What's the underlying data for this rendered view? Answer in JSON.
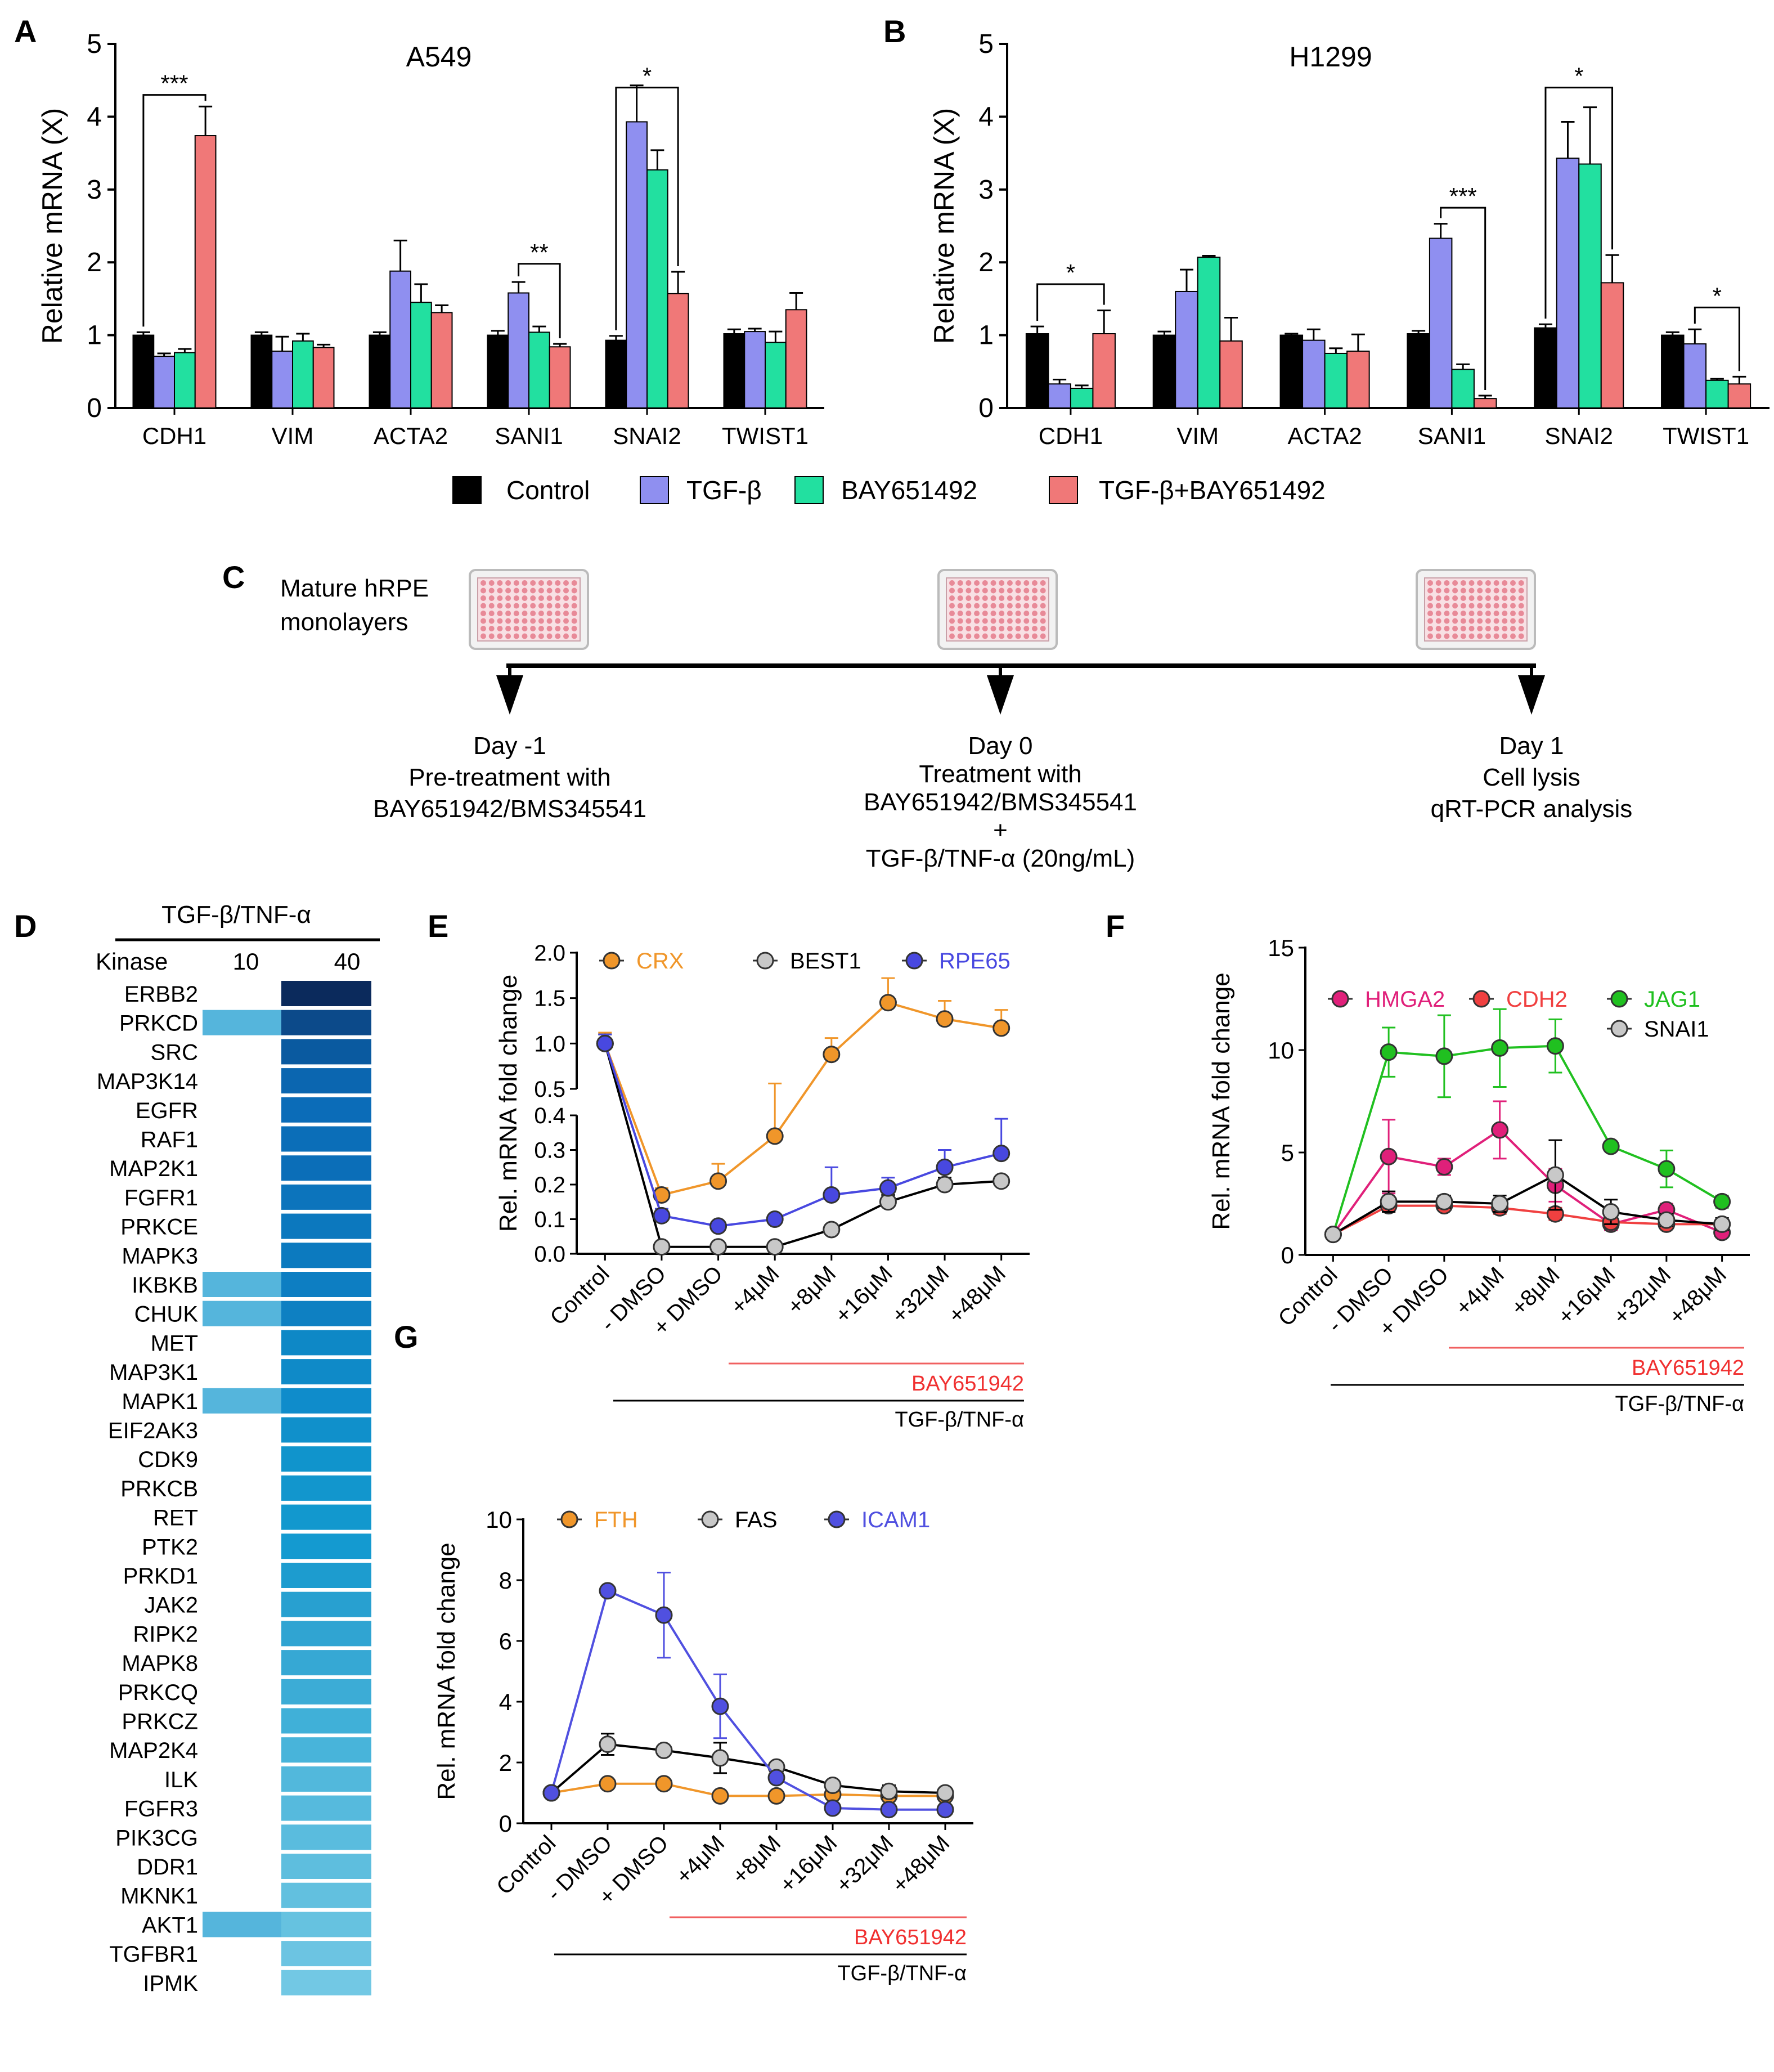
{
  "panel_letters": [
    "A",
    "B",
    "C",
    "D",
    "E",
    "F",
    "G"
  ],
  "colors": {
    "control": "#000000",
    "tgf": "#8f8ff0",
    "bay": "#22e0a0",
    "combo": "#f07878",
    "crx": "#f0962a",
    "best1": "#c8c8c8",
    "rpe65": "#4848e0",
    "hmga2": "#e0207a",
    "cdh2": "#f04040",
    "jag1": "#20c020",
    "snai1": "#c8c8c8",
    "fth": "#f0962a",
    "fas": "#c8c8c8",
    "icam1": "#5050e0",
    "treat_line": "#f06060",
    "treat_text": "#f03030"
  },
  "legend_ab": [
    "Control",
    "TGF-β",
    "BAY651492",
    "TGF-β+BAY651492"
  ],
  "panel_c": {
    "mature_label": [
      "Mature hRPE",
      "monolayers"
    ],
    "day_minus1": [
      "Day -1",
      "Pre-treatment with",
      "BAY651942/BMS345541"
    ],
    "day_0": [
      "Day 0",
      "Treatment with",
      "BAY651942/BMS345541",
      "+",
      "TGF-β/TNF-α (20ng/mL)"
    ],
    "day_1": [
      "Day 1",
      "Cell lysis",
      "qRT-PCR analysis"
    ]
  },
  "panel_d": {
    "header": "TGF-β/TNF-α",
    "kinase_label": "Kinase",
    "col_10": "10",
    "col_40": "40",
    "kinases": [
      "ERBB2",
      "PRKCD",
      "SRC",
      "MAP3K14",
      "EGFR",
      "RAF1",
      "MAP2K1",
      "FGFR1",
      "PRKCE",
      "MAPK3",
      "IKBKB",
      "CHUK",
      "MET",
      "MAP3K1",
      "MAPK1",
      "EIF2AK3",
      "CDK9",
      "PRKCB",
      "RET",
      "PTK2",
      "PRKD1",
      "JAK2",
      "RIPK2",
      "MAPK8",
      "PRKCQ",
      "PRKCZ",
      "MAP2K4",
      "ILK",
      "FGFR3",
      "PIK3CG",
      "DDR1",
      "MKNK1",
      "AKT1",
      "TGFBR1",
      "IPMK"
    ],
    "col10_shaded": [
      false,
      true,
      false,
      false,
      false,
      false,
      false,
      false,
      false,
      false,
      true,
      true,
      false,
      false,
      true,
      false,
      false,
      false,
      false,
      false,
      false,
      false,
      false,
      false,
      false,
      false,
      false,
      false,
      false,
      false,
      false,
      false,
      true,
      false,
      false
    ],
    "col40_colors": [
      "#0b2a5c",
      "#0c4a8a",
      "#0a5aa0",
      "#0b66b0",
      "#0b6cb8",
      "#0b6eb8",
      "#0b6eb8",
      "#0c74bc",
      "#0c78be",
      "#0c7abf",
      "#0d7ec2",
      "#0e80c2",
      "#0e88c6",
      "#0f8ac8",
      "#0f8ccb",
      "#1090cb",
      "#1094cc",
      "#1296cd",
      "#1298ce",
      "#149ad0",
      "#1d9ccf",
      "#28a0d0",
      "#30a4d2",
      "#36a8d4",
      "#3cacd6",
      "#40b0d8",
      "#48b4da",
      "#52b8dc",
      "#56badd",
      "#5abcde",
      "#5ebede",
      "#62c0df",
      "#66c2e0",
      "#6cc4e2",
      "#72c8e4"
    ],
    "col10_color": "#55b5dc"
  },
  "chart_data": [
    {
      "panel": "A",
      "type": "bar",
      "title": "A549",
      "ylabel": "Relative mRNA (X)",
      "ylim": [
        0,
        5
      ],
      "yticks": [
        0,
        1,
        2,
        3,
        4,
        5
      ],
      "categories": [
        "CDH1",
        "VIM",
        "ACTA2",
        "SANI1",
        "SNAI2",
        "TWIST1"
      ],
      "series": [
        {
          "name": "Control",
          "values": [
            1.0,
            1.0,
            1.0,
            1.0,
            0.93,
            1.02
          ],
          "err": [
            0.04,
            0.04,
            0.04,
            0.06,
            0.06,
            0.06
          ]
        },
        {
          "name": "TGF-β",
          "values": [
            0.71,
            0.78,
            1.88,
            1.58,
            3.93,
            1.05
          ],
          "err": [
            0.04,
            0.2,
            0.42,
            0.15,
            0.5,
            0.04
          ]
        },
        {
          "name": "BAY651492",
          "values": [
            0.76,
            0.92,
            1.45,
            1.04,
            3.27,
            0.9
          ],
          "err": [
            0.05,
            0.1,
            0.25,
            0.08,
            0.27,
            0.15
          ]
        },
        {
          "name": "TGF-β+BAY651492",
          "values": [
            3.74,
            0.83,
            1.31,
            0.84,
            1.57,
            1.35
          ],
          "err": [
            0.4,
            0.04,
            0.1,
            0.04,
            0.3,
            0.23
          ]
        }
      ],
      "significance": [
        {
          "label": "***",
          "category": 0,
          "from": 0,
          "to": 3,
          "y": 4.3
        },
        {
          "label": "**",
          "category": 3,
          "from": 1,
          "to": 3,
          "y": 1.98
        },
        {
          "label": "*",
          "category": 4,
          "from": 0,
          "to": 3,
          "y": 4.4
        }
      ]
    },
    {
      "panel": "B",
      "type": "bar",
      "title": "H1299",
      "ylabel": "Relative mRNA (X)",
      "ylim": [
        0,
        5
      ],
      "yticks": [
        0,
        1,
        2,
        3,
        4,
        5
      ],
      "categories": [
        "CDH1",
        "VIM",
        "ACTA2",
        "SANI1",
        "SNAI2",
        "TWIST1"
      ],
      "series": [
        {
          "name": "Control",
          "values": [
            1.02,
            1.0,
            1.0,
            1.02,
            1.1,
            1.0
          ],
          "err": [
            0.1,
            0.05,
            0.02,
            0.04,
            0.05,
            0.04
          ]
        },
        {
          "name": "TGF-β",
          "values": [
            0.33,
            1.6,
            0.93,
            2.33,
            3.43,
            0.88
          ],
          "err": [
            0.06,
            0.3,
            0.15,
            0.2,
            0.5,
            0.2
          ]
        },
        {
          "name": "BAY651492",
          "values": [
            0.27,
            2.07,
            0.75,
            0.53,
            3.35,
            0.38
          ],
          "err": [
            0.04,
            0.02,
            0.07,
            0.07,
            0.78,
            0.02
          ]
        },
        {
          "name": "TGF-β+BAY651492",
          "values": [
            1.02,
            0.92,
            0.78,
            0.13,
            1.72,
            0.33
          ],
          "err": [
            0.32,
            0.32,
            0.23,
            0.04,
            0.38,
            0.1
          ]
        }
      ],
      "significance": [
        {
          "label": "*",
          "category": 0,
          "from": 0,
          "to": 3,
          "y": 1.7
        },
        {
          "label": "***",
          "category": 3,
          "from": 1,
          "to": 3,
          "y": 2.75
        },
        {
          "label": "*",
          "category": 4,
          "from": 0,
          "to": 3,
          "y": 4.4
        },
        {
          "label": "*",
          "category": 5,
          "from": 1,
          "to": 3,
          "y": 1.38
        }
      ]
    },
    {
      "panel": "E",
      "type": "line",
      "ylabel": "Rel. mRNA fold change",
      "axis_break": true,
      "upper_yticks": [
        "0.5",
        "1.0",
        "1.5",
        "2.0"
      ],
      "lower_yticks": [
        "0.0",
        "0.1",
        "0.2",
        "0.3",
        "0.4"
      ],
      "upper_ylim": [
        0.5,
        2.0
      ],
      "lower_ylim": [
        0,
        0.4
      ],
      "x": [
        "Control",
        "- DMSO",
        "+ DMSO",
        "+4μM",
        "+8μM",
        "+16μM",
        "+32μM",
        "+48μM"
      ],
      "treatment_label": "BAY651942",
      "stimulus_label": "TGF-β/TNF-α",
      "series": [
        {
          "name": "CRX",
          "values": [
            1.0,
            0.17,
            0.21,
            0.34,
            0.88,
            1.45,
            1.27,
            1.17
          ],
          "err": [
            0.12,
            0.02,
            0.05,
            0.22,
            0.18,
            0.27,
            0.2,
            0.2
          ]
        },
        {
          "name": "BEST1",
          "values": [
            1.0,
            0.02,
            0.02,
            0.02,
            0.07,
            0.15,
            0.2,
            0.21
          ],
          "err": [
            0.1,
            0,
            0,
            0,
            0,
            0.02,
            0.02,
            0.01
          ]
        },
        {
          "name": "RPE65",
          "values": [
            1.0,
            0.11,
            0.08,
            0.1,
            0.17,
            0.19,
            0.25,
            0.29
          ],
          "err": [
            0.1,
            0.02,
            0,
            0.01,
            0.08,
            0.03,
            0.05,
            0.1
          ]
        }
      ]
    },
    {
      "panel": "F",
      "type": "line",
      "ylabel": "Rel. mRNA fold change",
      "ylim": [
        0,
        15
      ],
      "yticks": [
        0,
        5,
        10,
        15
      ],
      "x": [
        "Control",
        "- DMSO",
        "+ DMSO",
        "+4μM",
        "+8μM",
        "+16μM",
        "+32μM",
        "+48μM"
      ],
      "treatment_label": "BAY651942",
      "stimulus_label": "TGF-β/TNF-α",
      "series": [
        {
          "name": "HMGA2",
          "values": [
            1.0,
            4.8,
            4.3,
            6.1,
            3.4,
            1.5,
            2.2,
            1.1
          ],
          "err": [
            0.1,
            1.8,
            0.4,
            1.4,
            0.8,
            0.3,
            0.3,
            0.2
          ]
        },
        {
          "name": "CDH2",
          "values": [
            1.0,
            2.4,
            2.4,
            2.3,
            2.0,
            1.6,
            1.5,
            1.5
          ],
          "err": [
            0.1,
            0.3,
            0.2,
            0.3,
            0.3,
            0.2,
            0.2,
            0.2
          ]
        },
        {
          "name": "JAG1",
          "values": [
            1.0,
            9.9,
            9.7,
            10.1,
            10.2,
            5.3,
            4.2,
            2.6
          ],
          "err": [
            0.1,
            1.2,
            2.0,
            1.9,
            1.3,
            0.2,
            0.9,
            0.3
          ]
        },
        {
          "name": "SNAI1",
          "values": [
            1.0,
            2.6,
            2.6,
            2.5,
            3.9,
            2.1,
            1.7,
            1.5
          ],
          "err": [
            0.1,
            0.5,
            0.3,
            0.4,
            1.7,
            0.6,
            0.3,
            0.3
          ]
        }
      ]
    },
    {
      "panel": "G",
      "type": "line",
      "ylabel": "Rel. mRNA fold change",
      "ylim": [
        0,
        10
      ],
      "yticks": [
        0,
        2,
        4,
        6,
        8,
        10
      ],
      "x": [
        "Control",
        "- DMSO",
        "+ DMSO",
        "+4μM",
        "+8μM",
        "+16μM",
        "+32μM",
        "+48μM"
      ],
      "treatment_label": "BAY651942",
      "stimulus_label": "TGF-β/TNF-α",
      "series": [
        {
          "name": "FTH",
          "values": [
            1.0,
            1.3,
            1.3,
            0.9,
            0.9,
            0.95,
            0.9,
            0.9
          ],
          "err": [
            0.05,
            0.08,
            0.08,
            0.05,
            0.05,
            0.05,
            0.05,
            0.05
          ]
        },
        {
          "name": "FAS",
          "values": [
            1.0,
            2.6,
            2.4,
            2.15,
            1.85,
            1.25,
            1.05,
            1.0
          ],
          "err": [
            0.1,
            0.35,
            0.1,
            0.5,
            0.1,
            0.1,
            0.2,
            0.15
          ]
        },
        {
          "name": "ICAM1",
          "values": [
            1.0,
            7.65,
            6.85,
            3.85,
            1.5,
            0.5,
            0.45,
            0.45
          ],
          "err": [
            0.1,
            0.1,
            1.4,
            1.05,
            0.15,
            0.05,
            0.05,
            0.05
          ]
        }
      ]
    }
  ]
}
